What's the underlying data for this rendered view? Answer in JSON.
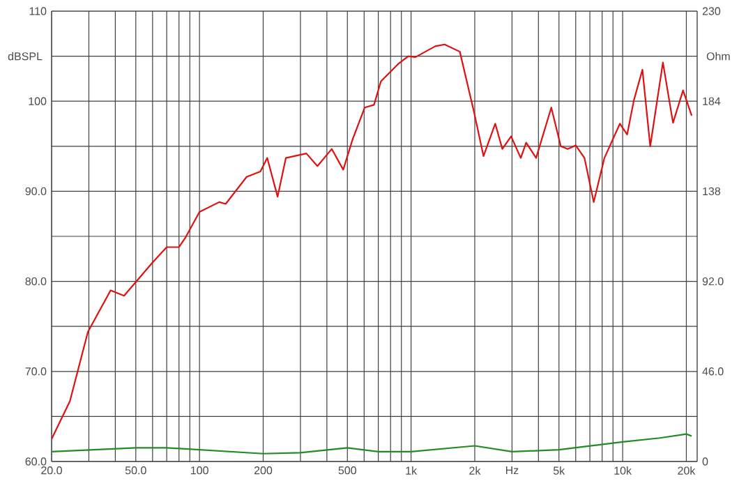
{
  "chart_data": {
    "type": "line",
    "ylabel": "dBSPL",
    "y2label": "Ohm",
    "log": "x",
    "grid": true,
    "xlim": [
      20,
      22500
    ],
    "ylim": [
      60,
      110
    ],
    "y2lim": [
      0,
      230
    ],
    "xticks": [
      {
        "value": 20,
        "label": "20.0"
      },
      {
        "value": 30,
        "label": null
      },
      {
        "value": 40,
        "label": null
      },
      {
        "value": 50,
        "label": "50.0"
      },
      {
        "value": 60,
        "label": null
      },
      {
        "value": 70,
        "label": null
      },
      {
        "value": 80,
        "label": null
      },
      {
        "value": 90,
        "label": null
      },
      100,
      200,
      {
        "value": 300,
        "label": null
      },
      {
        "value": 400,
        "label": null
      },
      500,
      {
        "value": 600,
        "label": null
      },
      {
        "value": 700,
        "label": null
      },
      {
        "value": 800,
        "label": null
      },
      {
        "value": 900,
        "label": null
      },
      {
        "value": 1000,
        "label": "1k"
      },
      {
        "value": 2000,
        "label": "2k"
      },
      {
        "value": 3000,
        "label": "Hz"
      },
      {
        "value": 4000,
        "label": null
      },
      {
        "value": 5000,
        "label": "5k"
      },
      {
        "value": 6000,
        "label": null
      },
      {
        "value": 7000,
        "label": null
      },
      {
        "value": 8000,
        "label": null
      },
      {
        "value": 9000,
        "label": null
      },
      {
        "value": 10000,
        "label": "10k"
      },
      {
        "value": 20000,
        "label": "20k"
      }
    ],
    "yticks": [
      {
        "value": 60,
        "label": "60.0"
      },
      {
        "value": 65,
        "label": null
      },
      {
        "value": 70,
        "label": "70.0"
      },
      {
        "value": 75,
        "label": null
      },
      {
        "value": 80,
        "label": "80.0"
      },
      {
        "value": 85,
        "label": null
      },
      {
        "value": 90,
        "label": "90.0"
      },
      {
        "value": 95,
        "label": null
      },
      100,
      {
        "value": 105,
        "label": null
      },
      110
    ],
    "y2ticks": [
      0,
      {
        "value": 46,
        "label": "46.0"
      },
      {
        "value": 92,
        "label": "92.0"
      },
      138,
      184,
      230
    ],
    "series": [
      {
        "color": "#e01010",
        "x": [
          20,
          24.4,
          29.7,
          38,
          44,
          60,
          70,
          80,
          86,
          100,
          124,
          133,
          167,
          194,
          209,
          234,
          256,
          320,
          361,
          422,
          478,
          530,
          604,
          668,
          720,
          866,
          970,
          1050,
          1300,
          1440,
          1700,
          1980,
          2200,
          2500,
          2700,
          2970,
          3300,
          3500,
          3900,
          4600,
          5100,
          5500,
          6000,
          6600,
          7300,
          8200,
          9700,
          10500,
          11300,
          12400,
          13500,
          15500,
          17300,
          19300,
          21200
        ],
        "values": [
          62.5,
          66.7,
          74.4,
          79.0,
          78.4,
          82.1,
          83.8,
          83.8,
          84.9,
          87.7,
          88.8,
          88.6,
          91.6,
          92.2,
          93.7,
          89.4,
          93.7,
          94.2,
          92.8,
          94.7,
          92.4,
          95.8,
          99.3,
          99.6,
          102.2,
          104.1,
          105.0,
          104.9,
          106.1,
          106.3,
          105.5,
          98.9,
          93.9,
          97.5,
          94.7,
          96.1,
          93.7,
          95.4,
          93.7,
          99.3,
          95.0,
          94.7,
          95.1,
          93.7,
          88.8,
          93.7,
          97.5,
          96.3,
          100.1,
          103.5,
          95.0,
          104.3,
          97.6,
          101.2,
          98.4
        ]
      },
      {
        "color": "#228b22",
        "axis": "y2",
        "x": [
          20,
          50,
          70,
          200,
          300,
          500,
          700,
          1000,
          2000,
          3000,
          5000,
          10000,
          15000,
          20000,
          21200
        ],
        "values": [
          5,
          7,
          7,
          4,
          4.5,
          7,
          5,
          5,
          8,
          5,
          6,
          10,
          12,
          14,
          13
        ]
      }
    ]
  }
}
